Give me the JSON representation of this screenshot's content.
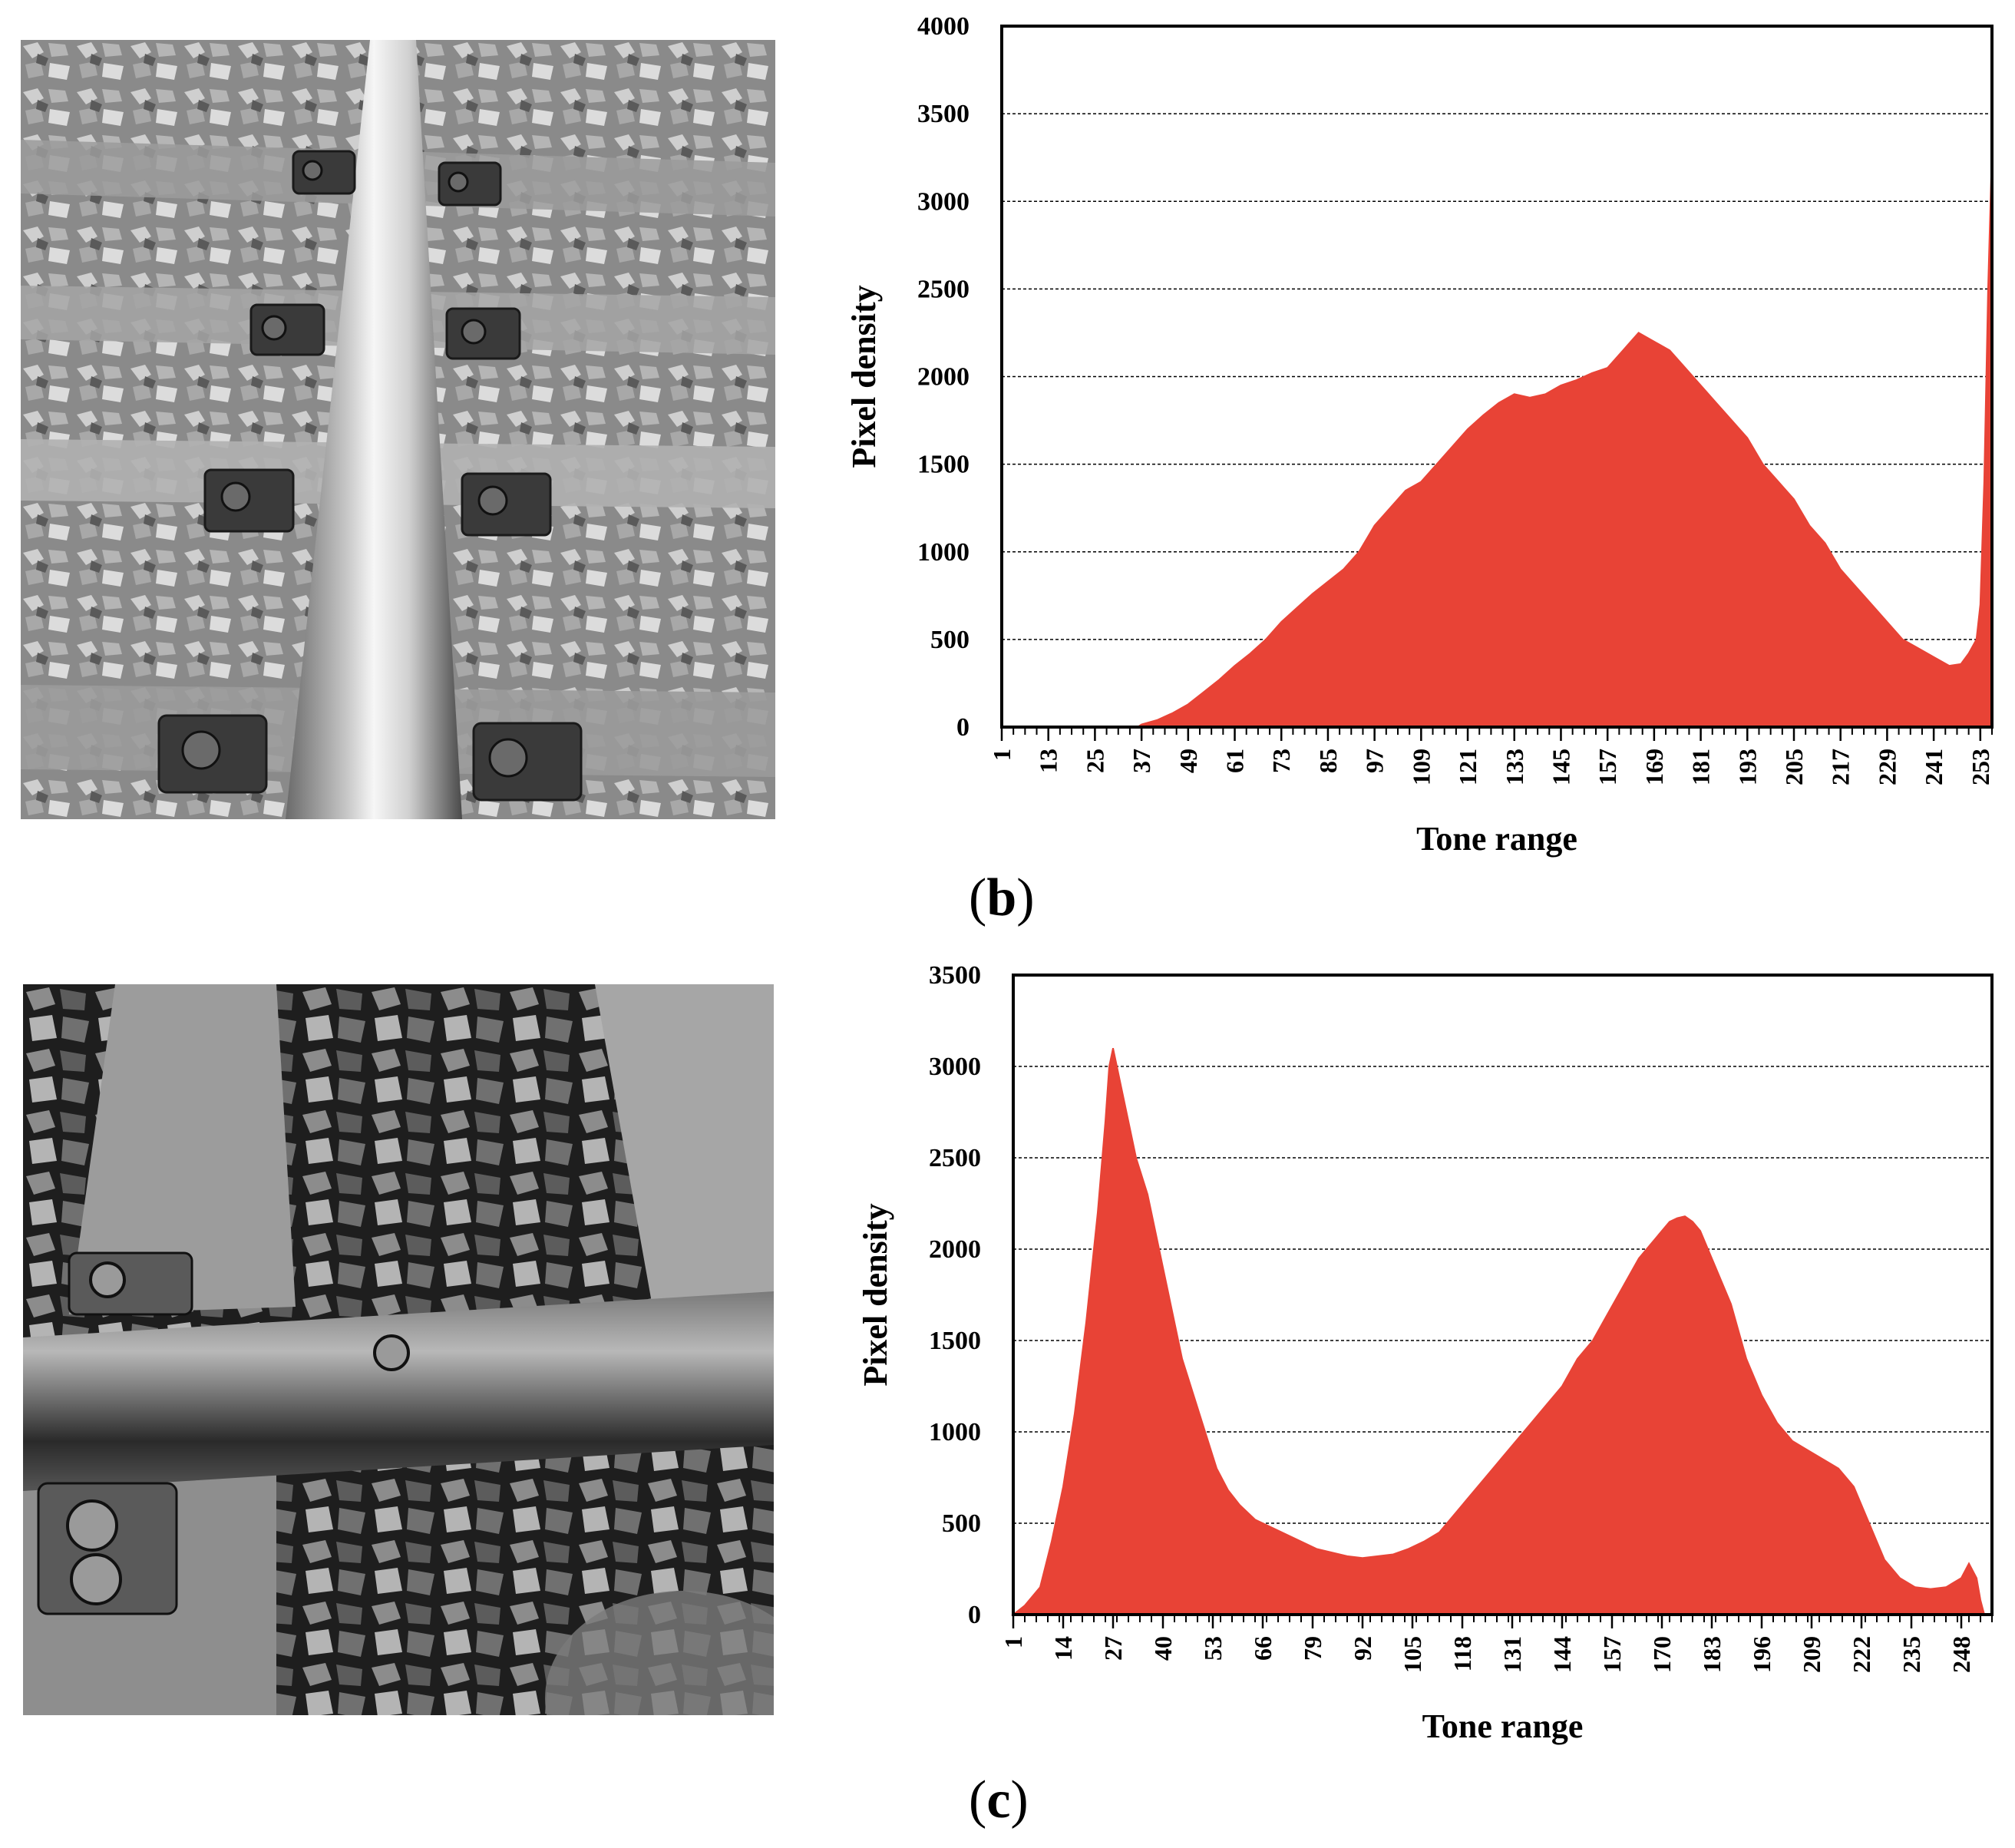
{
  "panels": [
    {
      "label_open": "(",
      "label_letter": "b",
      "label_close": ")",
      "photo": {
        "subject": "railway track with ballast, sleepers and rail fasteners (grayscale)"
      }
    },
    {
      "label_open": "(",
      "label_letter": "c",
      "label_close": ")",
      "photo": {
        "subject": "close-up of rail over sleepers and ballast with strong shadows (grayscale)"
      }
    }
  ],
  "colors": {
    "fill": "#e84336",
    "frame": "#000000",
    "grid": "#000000"
  },
  "chart_data": [
    {
      "type": "area",
      "title": "",
      "xlabel": "Tone range",
      "ylabel": "Pixel density",
      "xlim": [
        1,
        256
      ],
      "ylim": [
        0,
        4000
      ],
      "yticks": [
        0,
        500,
        1000,
        1500,
        2000,
        2500,
        3000,
        3500,
        4000
      ],
      "xticks": [
        1,
        13,
        25,
        37,
        49,
        61,
        73,
        85,
        97,
        109,
        121,
        133,
        145,
        157,
        169,
        181,
        193,
        205,
        217,
        229,
        241,
        253
      ],
      "grid": "horizontal dashed",
      "series": [
        {
          "x": [
            1,
            36,
            37,
            41,
            45,
            49,
            53,
            57,
            61,
            65,
            69,
            73,
            77,
            81,
            85,
            89,
            93,
            97,
            101,
            105,
            109,
            113,
            117,
            121,
            125,
            129,
            133,
            137,
            141,
            145,
            149,
            153,
            157,
            161,
            163,
            165,
            169,
            173,
            177,
            181,
            185,
            189,
            193,
            197,
            201,
            205,
            209,
            213,
            217,
            221,
            225,
            229,
            233,
            237,
            241,
            245,
            248,
            250,
            252,
            253,
            254,
            255,
            256
          ],
          "y": [
            0,
            0,
            15,
            40,
            80,
            130,
            200,
            270,
            350,
            420,
            500,
            600,
            680,
            760,
            830,
            900,
            1000,
            1150,
            1250,
            1350,
            1400,
            1500,
            1600,
            1700,
            1780,
            1850,
            1900,
            1880,
            1900,
            1950,
            1980,
            2020,
            2050,
            2150,
            2200,
            2250,
            2200,
            2150,
            2050,
            1950,
            1850,
            1750,
            1650,
            1500,
            1400,
            1300,
            1150,
            1050,
            900,
            800,
            700,
            600,
            500,
            450,
            400,
            350,
            360,
            420,
            500,
            700,
            1400,
            2500,
            3300
          ]
        }
      ]
    },
    {
      "type": "area",
      "title": "",
      "xlabel": "Tone range",
      "ylabel": "Pixel density",
      "xlim": [
        1,
        256
      ],
      "ylim": [
        0,
        3500
      ],
      "yticks": [
        0,
        500,
        1000,
        1500,
        2000,
        2500,
        3000,
        3500
      ],
      "xticks": [
        1,
        14,
        27,
        40,
        53,
        66,
        79,
        92,
        105,
        118,
        131,
        144,
        157,
        170,
        183,
        196,
        209,
        222,
        235,
        248
      ],
      "grid": "horizontal dashed",
      "series": [
        {
          "x": [
            1,
            4,
            8,
            11,
            14,
            17,
            20,
            23,
            25,
            26,
            27,
            28,
            30,
            33,
            36,
            39,
            42,
            45,
            48,
            51,
            54,
            57,
            60,
            64,
            68,
            72,
            76,
            80,
            84,
            88,
            92,
            96,
            100,
            104,
            108,
            112,
            116,
            120,
            124,
            128,
            132,
            136,
            140,
            144,
            148,
            152,
            156,
            160,
            164,
            168,
            172,
            174,
            176,
            178,
            180,
            182,
            184,
            188,
            192,
            196,
            200,
            204,
            208,
            212,
            216,
            220,
            224,
            228,
            232,
            236,
            240,
            244,
            248,
            250,
            252,
            253,
            254
          ],
          "y": [
            0,
            50,
            150,
            400,
            700,
            1100,
            1600,
            2200,
            2700,
            3000,
            3100,
            3000,
            2800,
            2500,
            2300,
            2000,
            1700,
            1400,
            1200,
            1000,
            800,
            680,
            600,
            520,
            480,
            440,
            400,
            360,
            340,
            320,
            310,
            320,
            330,
            360,
            400,
            450,
            550,
            650,
            750,
            850,
            950,
            1050,
            1150,
            1250,
            1400,
            1500,
            1650,
            1800,
            1950,
            2050,
            2150,
            2170,
            2180,
            2150,
            2100,
            2000,
            1900,
            1700,
            1400,
            1200,
            1050,
            950,
            900,
            850,
            800,
            700,
            500,
            300,
            200,
            150,
            140,
            150,
            200,
            280,
            200,
            80,
            0
          ]
        }
      ]
    }
  ]
}
